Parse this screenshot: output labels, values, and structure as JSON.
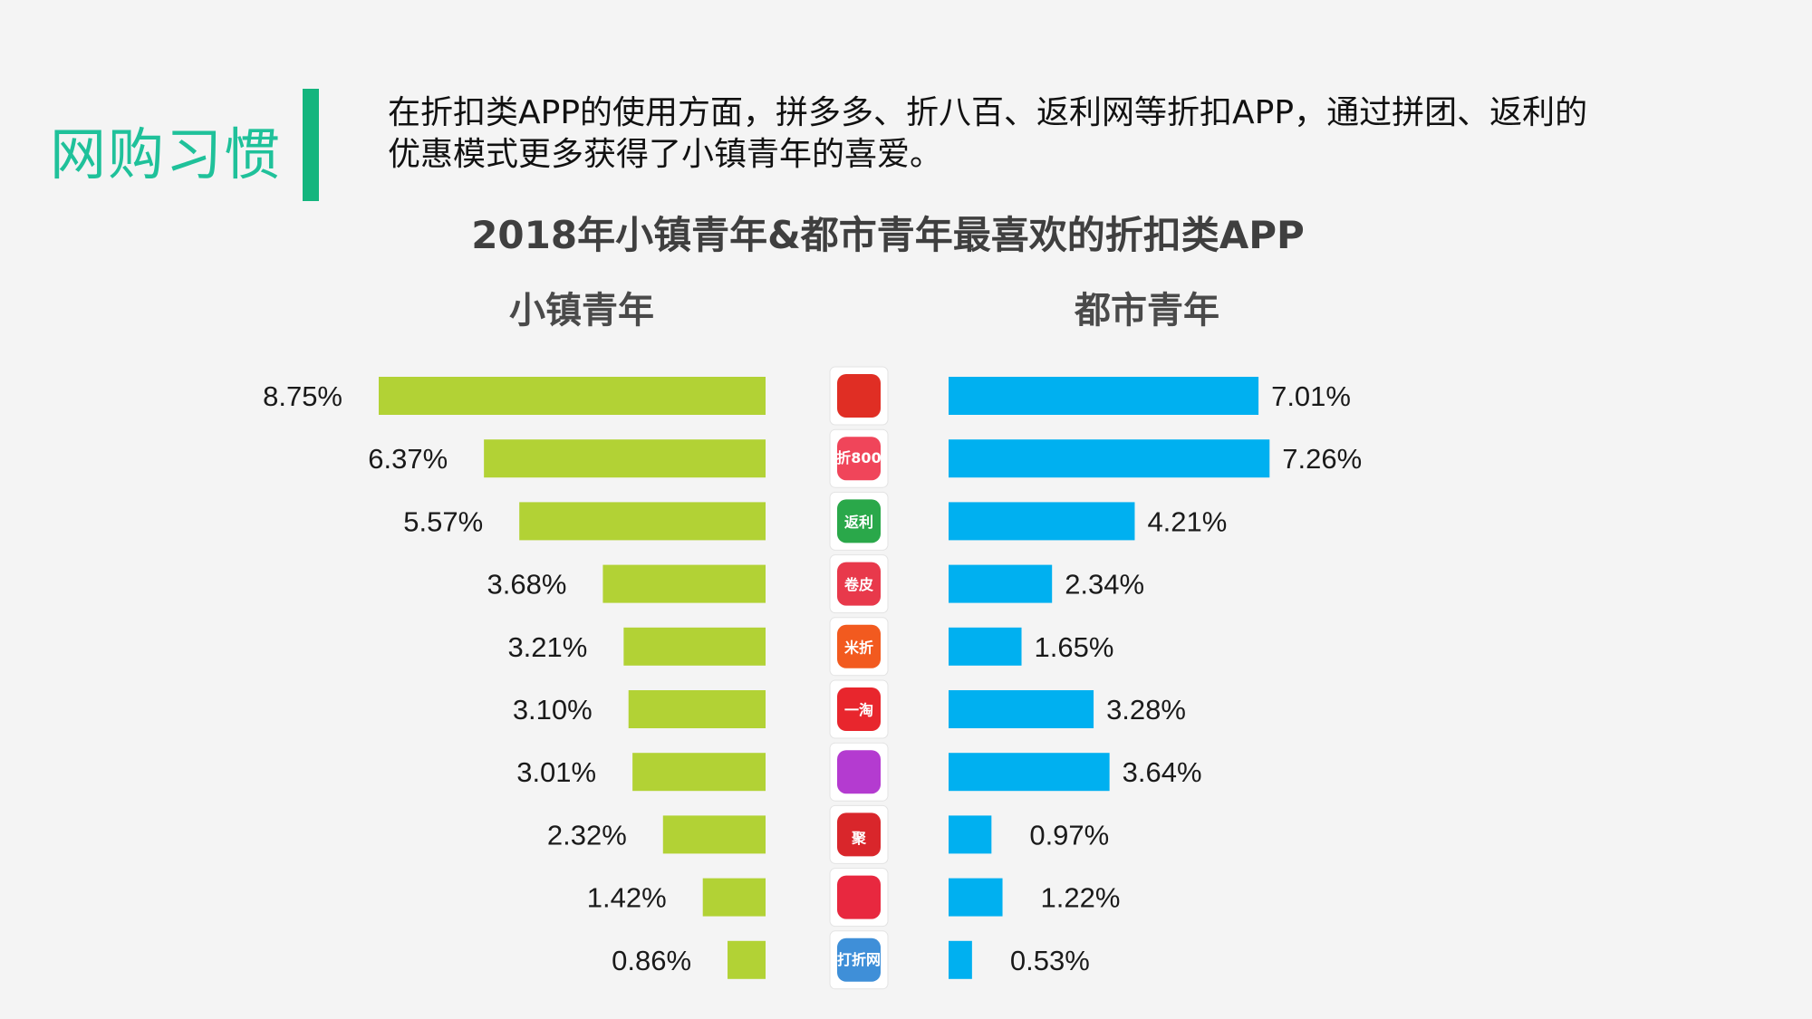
{
  "header": {
    "section_title": "网购习惯",
    "intro": "在折扣类APP的使用方面，拼多多、折八百、返利网等折扣APP，通过拼团、返利的优惠模式更多获得了小镇青年的喜爱。"
  },
  "colors": {
    "small_town": "#b2d235",
    "urban": "#00b0f0",
    "accent": "#14b57e"
  },
  "chart_data": {
    "type": "bar",
    "title": "2018年小镇青年&都市青年最喜欢的折扣类APP",
    "series": [
      {
        "name": "小镇青年",
        "values": [
          8.75,
          6.37,
          5.57,
          3.68,
          3.21,
          3.1,
          3.01,
          2.32,
          1.42,
          0.86
        ],
        "labels": [
          "8.75%",
          "6.37%",
          "5.57%",
          "3.68%",
          "3.21%",
          "3.10%",
          "3.01%",
          "2.32%",
          "1.42%",
          "0.86%"
        ]
      },
      {
        "name": "都市青年",
        "values": [
          7.01,
          7.26,
          4.21,
          2.34,
          1.65,
          3.28,
          3.64,
          0.97,
          1.22,
          0.53
        ],
        "labels": [
          "7.01%",
          "7.26%",
          "4.21%",
          "2.34%",
          "1.65%",
          "3.28%",
          "3.64%",
          "0.97%",
          "1.22%",
          "0.53%"
        ]
      }
    ],
    "categories": [
      {
        "icon": "pinduoduo-icon",
        "icon_text": "",
        "icon_color": "#e02e24"
      },
      {
        "icon": "zhe800-icon",
        "icon_text": "折800",
        "icon_color": "#f0455a"
      },
      {
        "icon": "fanli-icon",
        "icon_text": "返利",
        "icon_color": "#2aa84a"
      },
      {
        "icon": "juanpi-icon",
        "icon_text": "卷皮",
        "icon_color": "#e8394b"
      },
      {
        "icon": "mizhe-icon",
        "icon_text": "米折",
        "icon_color": "#f25a1f"
      },
      {
        "icon": "yitao-icon",
        "icon_text": "一淘",
        "icon_color": "#e8262d"
      },
      {
        "icon": "zhetaowang-icon",
        "icon_text": "",
        "icon_color": "#b43bd0"
      },
      {
        "icon": "juhuasuan-icon",
        "icon_text": "聚",
        "icon_color": "#d9262b"
      },
      {
        "icon": "shopping-bag-icon",
        "icon_text": "",
        "icon_color": "#e8283f"
      },
      {
        "icon": "dazhewang-icon",
        "icon_text": "打折网",
        "icon_color": "#3f8fd8"
      }
    ]
  }
}
